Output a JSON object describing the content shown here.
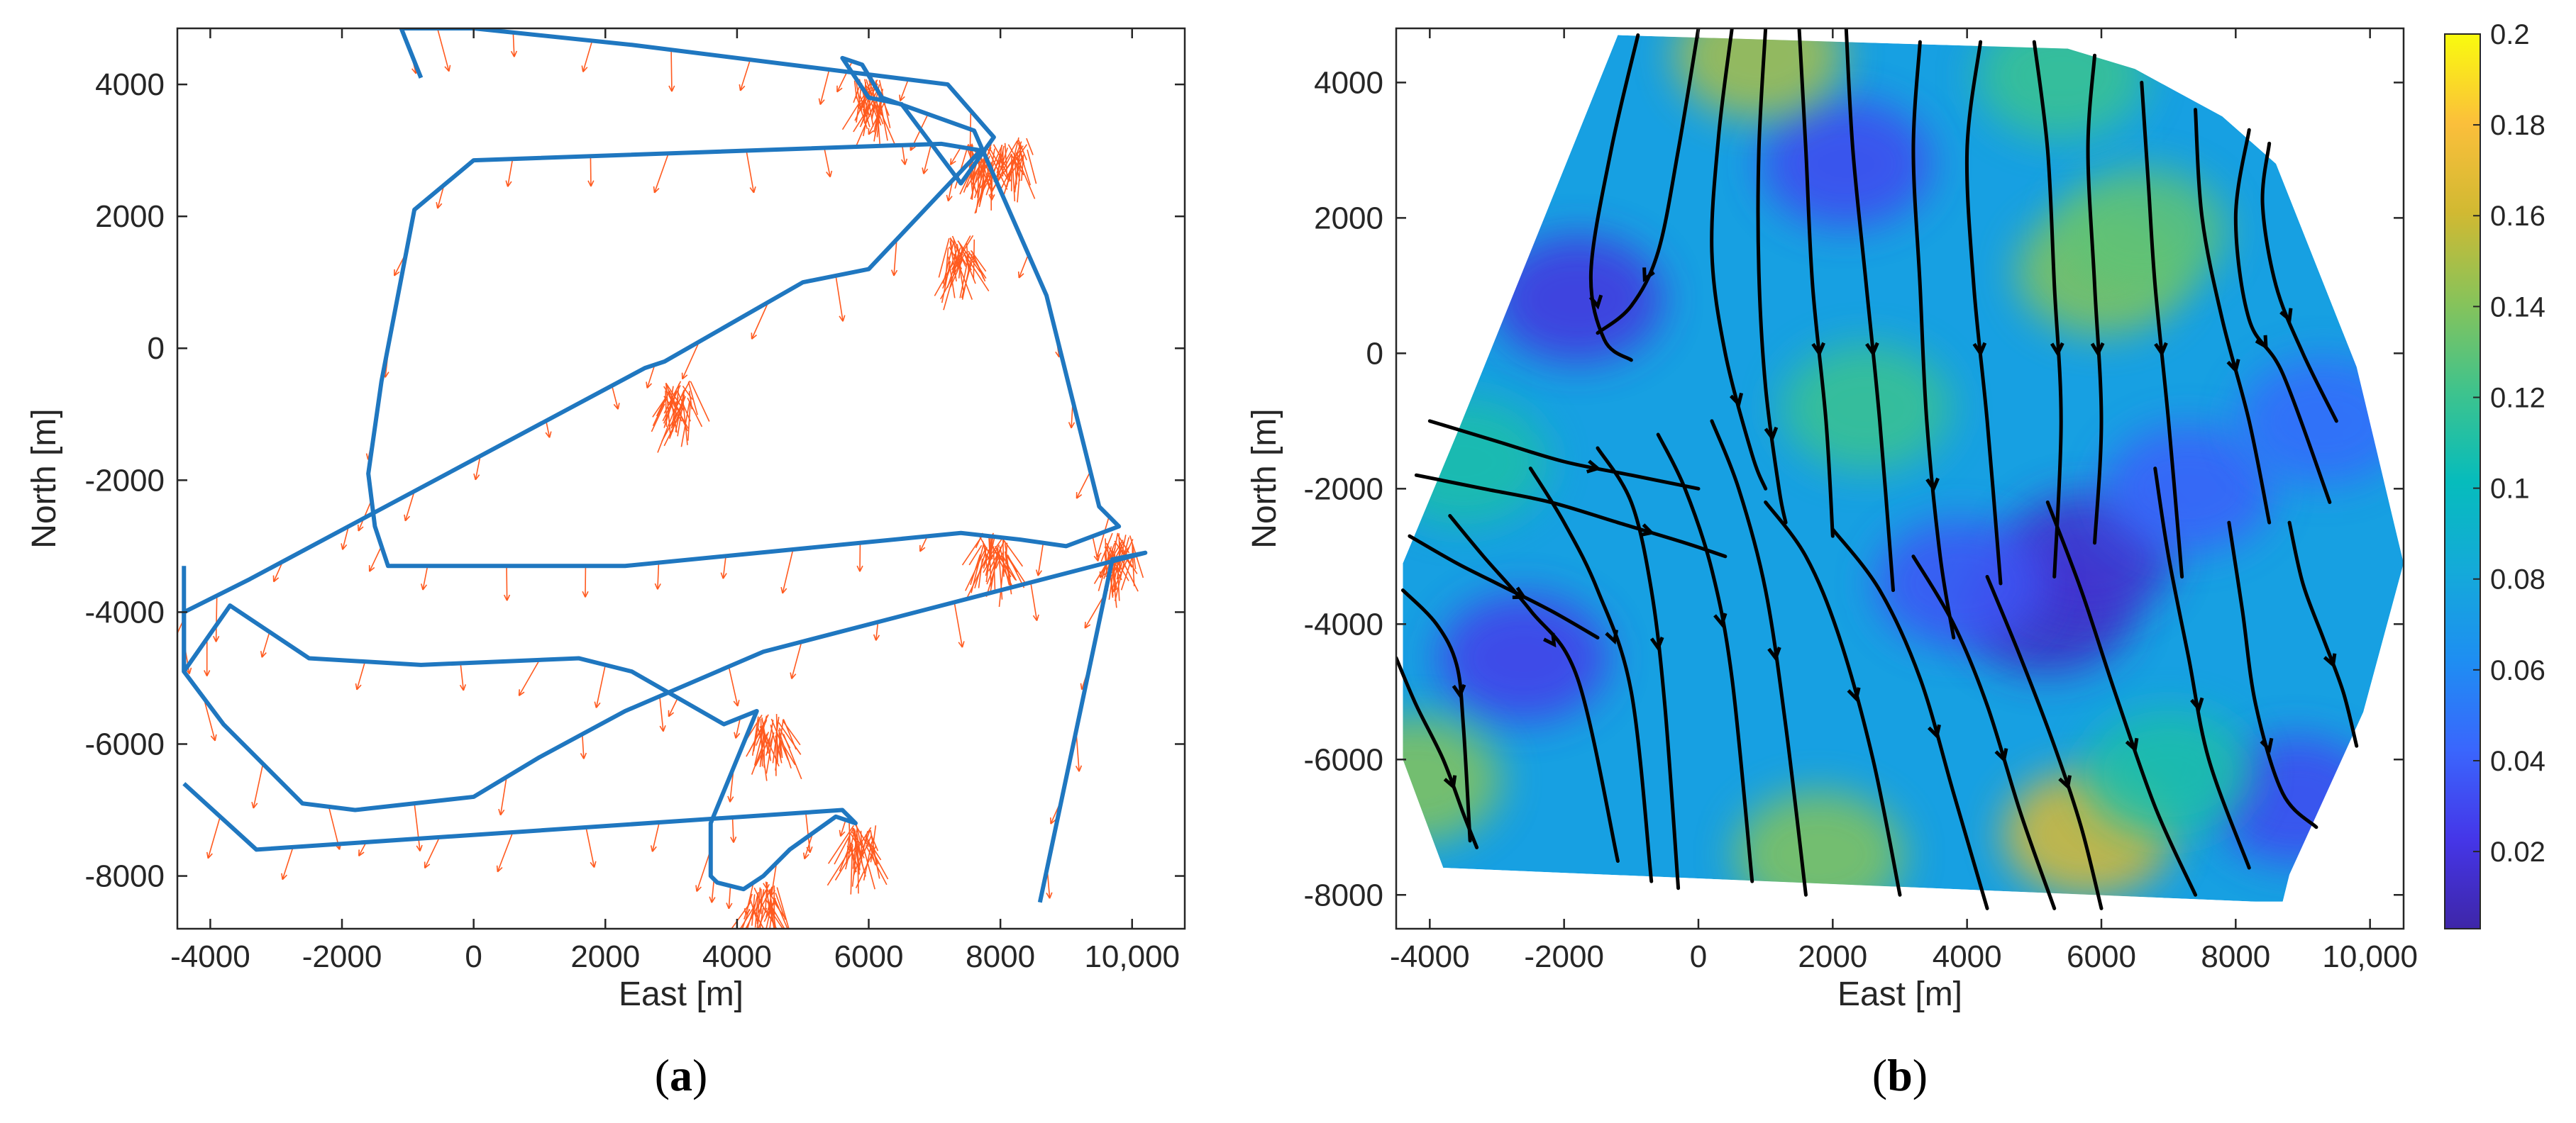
{
  "chart_data": [
    {
      "type": "line",
      "panel_label": "a",
      "xlabel": "East [m]",
      "ylabel": "North [m]",
      "xlim": [
        -4500,
        10800
      ],
      "ylim": [
        -8800,
        4850
      ],
      "xticks": [
        -4000,
        -2000,
        0,
        2000,
        4000,
        6000,
        8000,
        10000
      ],
      "xtick_labels": [
        "-4000",
        "-2000",
        "0",
        "2000",
        "4000",
        "6000",
        "8000",
        "10,000"
      ],
      "yticks": [
        4000,
        2000,
        0,
        -2000,
        -4000,
        -6000,
        -8000
      ],
      "ytick_labels": [
        "4000",
        "2000",
        "0",
        "-2000",
        "-4000",
        "-6000",
        "-8000"
      ],
      "grid": false,
      "colors": {
        "track": "#1f77c0",
        "arrows": "#ff5a1f"
      },
      "series": [
        {
          "type": "track",
          "x": [
            -1100,
            0,
            2400,
            7200,
            7900,
            7400,
            6500,
            6000,
            5600,
            5900,
            6200,
            7600,
            8700,
            9500,
            9800,
            9000,
            8300,
            7400,
            2300,
            -1300,
            -1500,
            -1600,
            -1400,
            -900,
            0,
            7100,
            7700,
            6000,
            5000,
            2900,
            2600,
            -3400,
            -4400,
            -4400,
            -3800,
            -2600,
            -1800,
            0,
            1000,
            2300,
            4400,
            10200,
            9700,
            8600
          ],
          "y": [
            4850,
            4850,
            4600,
            4000,
            3200,
            2500,
            3700,
            3800,
            4400,
            4300,
            3800,
            3300,
            800,
            -2400,
            -2700,
            -3000,
            -2900,
            -2800,
            -3300,
            -3300,
            -2700,
            -1900,
            -500,
            2100,
            2850,
            3100,
            3000,
            1200,
            1000,
            -200,
            -300,
            -3500,
            -4000,
            -4900,
            -5700,
            -6900,
            -7000,
            -6800,
            -6200,
            -5500,
            -4600,
            -3100,
            -3200,
            -8400
          ]
        },
        {
          "type": "track",
          "x": [
            -4400,
            -4400,
            -3700,
            -2500,
            -800,
            1600,
            2400,
            3800,
            4300,
            3600,
            3600,
            3700,
            4100,
            4400,
            4800,
            5500,
            5800,
            5600,
            -3300,
            -4400
          ],
          "y": [
            -3300,
            -4900,
            -3900,
            -4700,
            -4800,
            -4700,
            -4900,
            -5700,
            -5500,
            -7200,
            -8000,
            -8100,
            -8200,
            -8000,
            -7600,
            -7100,
            -7200,
            -7000,
            -7600,
            -6600
          ]
        },
        {
          "type": "track",
          "x": [
            -1100,
            -800
          ],
          "y": [
            4850,
            4100
          ]
        }
      ],
      "arrow_clusters": [
        {
          "x": 6000,
          "y": 3900
        },
        {
          "x": 7700,
          "y": 2900
        },
        {
          "x": 8200,
          "y": 3000
        },
        {
          "x": 7400,
          "y": 1500
        },
        {
          "x": 3100,
          "y": -700
        },
        {
          "x": 9800,
          "y": -3000
        },
        {
          "x": 4400,
          "y": -8300
        },
        {
          "x": 5900,
          "y": -7400
        },
        {
          "x": 4500,
          "y": -5700
        },
        {
          "x": 7900,
          "y": -3000
        }
      ]
    },
    {
      "type": "heatmap",
      "panel_label": "b",
      "xlabel": "East [m]",
      "ylabel": "North [m]",
      "xlim": [
        -4500,
        10500
      ],
      "ylim": [
        -8500,
        4800
      ],
      "xticks": [
        -4000,
        -2000,
        0,
        2000,
        4000,
        6000,
        8000,
        10000
      ],
      "xtick_labels": [
        "-4000",
        "-2000",
        "0",
        "2000",
        "4000",
        "6000",
        "8000",
        "10,000"
      ],
      "yticks": [
        4000,
        2000,
        0,
        -2000,
        -4000,
        -6000,
        -8000
      ],
      "ytick_labels": [
        "4000",
        "2000",
        "0",
        "-2000",
        "-4000",
        "-6000",
        "-8000"
      ],
      "colorbar": {
        "range": [
          0.003,
          0.2
        ],
        "ticks": [
          0.02,
          0.04,
          0.06,
          0.08,
          0.1,
          0.12,
          0.14,
          0.16,
          0.18,
          0.2
        ],
        "tick_labels": [
          "0.02",
          "0.04",
          "0.06",
          "0.08",
          "0.1",
          "0.12",
          "0.14",
          "0.16",
          "0.18",
          "0.2"
        ],
        "colormap": "parula"
      },
      "base_value": 0.075,
      "blobs": [
        {
          "x": 2200,
          "y": 2800,
          "value": 0.03
        },
        {
          "x": -1800,
          "y": 800,
          "value": 0.02
        },
        {
          "x": -2600,
          "y": -4500,
          "value": 0.025
        },
        {
          "x": 5200,
          "y": -3800,
          "value": 0.012
        },
        {
          "x": 5800,
          "y": -3000,
          "value": 0.015
        },
        {
          "x": 3900,
          "y": -3400,
          "value": 0.035
        },
        {
          "x": 8900,
          "y": -6600,
          "value": 0.03
        },
        {
          "x": 7300,
          "y": -2000,
          "value": 0.04
        },
        {
          "x": 9300,
          "y": -1000,
          "value": 0.045
        },
        {
          "x": 900,
          "y": 4400,
          "value": 0.15
        },
        {
          "x": 6000,
          "y": 1200,
          "value": 0.14
        },
        {
          "x": 6600,
          "y": 1800,
          "value": 0.13
        },
        {
          "x": 5800,
          "y": -7100,
          "value": 0.165
        },
        {
          "x": 1800,
          "y": -7400,
          "value": 0.14
        },
        {
          "x": -4200,
          "y": -6300,
          "value": 0.14
        },
        {
          "x": 5400,
          "y": 4100,
          "value": 0.12
        },
        {
          "x": 2500,
          "y": -800,
          "value": 0.12
        },
        {
          "x": -3500,
          "y": -1600,
          "value": 0.11
        },
        {
          "x": 7000,
          "y": -6200,
          "value": 0.11
        }
      ],
      "streamlines": [
        {
          "x": [
            -900,
            -1300,
            -1600,
            -1400,
            -1000
          ],
          "y": [
            4700,
            3000,
            1200,
            200,
            -100
          ]
        },
        {
          "x": [
            0,
            -300,
            -600,
            -1000,
            -1500
          ],
          "y": [
            4800,
            3000,
            1500,
            700,
            300
          ]
        },
        {
          "x": [
            500,
            300,
            200,
            400,
            800,
            1000
          ],
          "y": [
            4800,
            3200,
            1500,
            0,
            -1500,
            -2000
          ]
        },
        {
          "x": [
            1000,
            900,
            900,
            1000,
            1200,
            1300
          ],
          "y": [
            4800,
            3000,
            1200,
            -500,
            -2000,
            -2500
          ]
        },
        {
          "x": [
            1500,
            1600,
            1700,
            1900,
            2000
          ],
          "y": [
            4800,
            3000,
            1000,
            -1000,
            -2700
          ]
        },
        {
          "x": [
            2200,
            2300,
            2500,
            2700,
            2900
          ],
          "y": [
            4800,
            3000,
            1000,
            -1000,
            -3500
          ]
        },
        {
          "x": [
            3300,
            3200,
            3300,
            3400,
            3600,
            3800
          ],
          "y": [
            4600,
            3000,
            1000,
            -1000,
            -3000,
            -4200
          ]
        },
        {
          "x": [
            4200,
            4000,
            4100,
            4300,
            4500
          ],
          "y": [
            4600,
            3000,
            1000,
            -1000,
            -3400
          ]
        },
        {
          "x": [
            5000,
            5200,
            5300,
            5400,
            5300
          ],
          "y": [
            4600,
            3000,
            1000,
            -1000,
            -3300
          ]
        },
        {
          "x": [
            5900,
            5800,
            5900,
            6000,
            5900
          ],
          "y": [
            4400,
            3000,
            1000,
            -1000,
            -2800
          ]
        },
        {
          "x": [
            6600,
            6700,
            6800,
            7000,
            7200
          ],
          "y": [
            4000,
            2500,
            1000,
            -1000,
            -3300
          ]
        },
        {
          "x": [
            7400,
            7500,
            7800,
            8200,
            8500
          ],
          "y": [
            3600,
            2000,
            500,
            -1000,
            -2500
          ]
        },
        {
          "x": [
            8200,
            8000,
            8200,
            8700,
            9400
          ],
          "y": [
            3300,
            2000,
            500,
            -300,
            -2200
          ]
        },
        {
          "x": [
            8500,
            8400,
            8600,
            9000,
            9500
          ],
          "y": [
            3100,
            2200,
            1000,
            0,
            -1000
          ]
        },
        {
          "x": [
            -4000,
            -3000,
            -2000,
            -1000,
            0
          ],
          "y": [
            -1000,
            -1300,
            -1600,
            -1800,
            -2000
          ]
        },
        {
          "x": [
            -4200,
            -3200,
            -2200,
            -1200,
            -200,
            400
          ],
          "y": [
            -1800,
            -2000,
            -2200,
            -2500,
            -2800,
            -3000
          ]
        },
        {
          "x": [
            -4300,
            -3600,
            -3000,
            -2200,
            -1500
          ],
          "y": [
            -2700,
            -3100,
            -3400,
            -3800,
            -4200
          ]
        },
        {
          "x": [
            -4400,
            -3900,
            -3600,
            -3500,
            -3400
          ],
          "y": [
            -3500,
            -4000,
            -4600,
            -5500,
            -7200
          ]
        },
        {
          "x": [
            -4500,
            -4200,
            -3800,
            -3500,
            -3300
          ],
          "y": [
            -4500,
            -5200,
            -6000,
            -6800,
            -7300
          ]
        },
        {
          "x": [
            -3700,
            -3200,
            -2500,
            -1800,
            -1200
          ],
          "y": [
            -2400,
            -3000,
            -3800,
            -4800,
            -7500
          ]
        },
        {
          "x": [
            -2500,
            -2000,
            -1500,
            -1000,
            -700
          ],
          "y": [
            -1700,
            -2500,
            -3500,
            -5000,
            -7800
          ]
        },
        {
          "x": [
            -1500,
            -1000,
            -700,
            -500,
            -300
          ],
          "y": [
            -1400,
            -2200,
            -3500,
            -5200,
            -7900
          ]
        },
        {
          "x": [
            -600,
            -200,
            200,
            500,
            800
          ],
          "y": [
            -1200,
            -2000,
            -3200,
            -4800,
            -7800
          ]
        },
        {
          "x": [
            200,
            600,
            1000,
            1300,
            1600
          ],
          "y": [
            -1000,
            -2000,
            -3500,
            -5500,
            -8000
          ]
        },
        {
          "x": [
            1000,
            1600,
            2100,
            2600,
            3000
          ],
          "y": [
            -2200,
            -3000,
            -4200,
            -6000,
            -8000
          ]
        },
        {
          "x": [
            2000,
            2700,
            3300,
            3800,
            4300
          ],
          "y": [
            -2600,
            -3500,
            -4800,
            -6500,
            -8200
          ]
        },
        {
          "x": [
            3200,
            3800,
            4300,
            4800,
            5300
          ],
          "y": [
            -3000,
            -4000,
            -5200,
            -6800,
            -8200
          ]
        },
        {
          "x": [
            4300,
            4800,
            5300,
            5700,
            6000
          ],
          "y": [
            -3300,
            -4500,
            -5800,
            -7000,
            -8200
          ]
        },
        {
          "x": [
            5200,
            5700,
            6200,
            6800,
            7400
          ],
          "y": [
            -2200,
            -3500,
            -5000,
            -6700,
            -8000
          ]
        },
        {
          "x": [
            6800,
            7000,
            7300,
            7600,
            8200
          ],
          "y": [
            -1700,
            -3000,
            -4500,
            -6000,
            -7600
          ]
        },
        {
          "x": [
            7900,
            8100,
            8300,
            8700,
            9200
          ],
          "y": [
            -2500,
            -3800,
            -5200,
            -6500,
            -7000
          ]
        },
        {
          "x": [
            8800,
            9000,
            9300,
            9600,
            9800
          ],
          "y": [
            -2500,
            -3400,
            -4200,
            -5000,
            -5800
          ]
        }
      ]
    }
  ]
}
